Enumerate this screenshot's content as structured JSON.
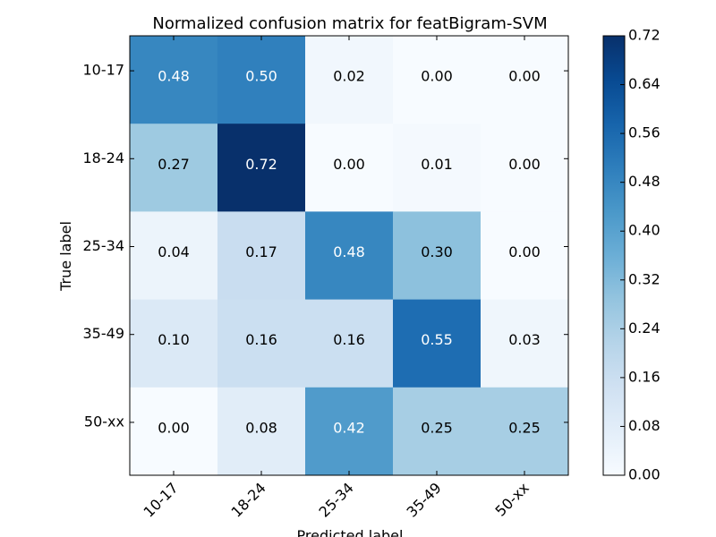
{
  "chart_data": {
    "type": "heatmap",
    "title": "Normalized confusion matrix for featBigram-SVM",
    "xlabel": "Predicted label",
    "ylabel": "True label",
    "x_categories": [
      "10-17",
      "18-24",
      "25-34",
      "35-49",
      "50-xx"
    ],
    "y_categories": [
      "10-17",
      "18-24",
      "25-34",
      "35-49",
      "50-xx"
    ],
    "values": [
      [
        0.48,
        0.5,
        0.02,
        0.0,
        0.0
      ],
      [
        0.27,
        0.72,
        0.0,
        0.01,
        0.0
      ],
      [
        0.04,
        0.17,
        0.48,
        0.3,
        0.0
      ],
      [
        0.1,
        0.16,
        0.16,
        0.55,
        0.03
      ],
      [
        0.0,
        0.08,
        0.42,
        0.25,
        0.25
      ]
    ],
    "value_labels": [
      [
        "0.48",
        "0.50",
        "0.02",
        "0.00",
        "0.00"
      ],
      [
        "0.27",
        "0.72",
        "0.00",
        "0.01",
        "0.00"
      ],
      [
        "0.04",
        "0.17",
        "0.48",
        "0.30",
        "0.00"
      ],
      [
        "0.10",
        "0.16",
        "0.16",
        "0.55",
        "0.03"
      ],
      [
        "0.00",
        "0.08",
        "0.42",
        "0.25",
        "0.25"
      ]
    ],
    "colormap": "Blues",
    "colorbar": {
      "range": [
        0.0,
        0.72
      ],
      "ticks": [
        0.0,
        0.08,
        0.16,
        0.24,
        0.32,
        0.4,
        0.48,
        0.56,
        0.64,
        0.72
      ],
      "tick_labels": [
        "0.00",
        "0.08",
        "0.16",
        "0.24",
        "0.32",
        "0.40",
        "0.48",
        "0.56",
        "0.64",
        "0.72"
      ]
    },
    "x_tick_rotation": 45,
    "grid": false,
    "colorbar_placement": "right"
  }
}
